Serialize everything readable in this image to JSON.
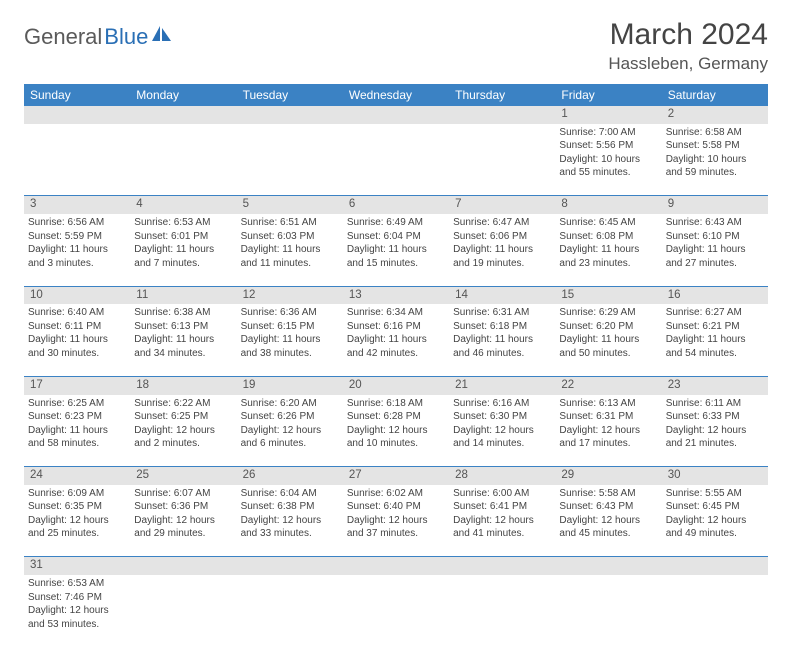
{
  "logo": {
    "part1": "General",
    "part2": "Blue"
  },
  "title": "March 2024",
  "location": "Hassleben, Germany",
  "colors": {
    "header_bg": "#3b82c4",
    "header_text": "#ffffff",
    "daynum_bg": "#e4e4e4",
    "text": "#444444",
    "row_divider": "#3b82c4",
    "logo_gray": "#5a5a5a",
    "logo_blue": "#2a6fb5"
  },
  "day_headers": [
    "Sunday",
    "Monday",
    "Tuesday",
    "Wednesday",
    "Thursday",
    "Friday",
    "Saturday"
  ],
  "weeks": [
    [
      null,
      null,
      null,
      null,
      null,
      {
        "d": "1",
        "sr": "7:00 AM",
        "ss": "5:56 PM",
        "dl": "10 hours and 55 minutes."
      },
      {
        "d": "2",
        "sr": "6:58 AM",
        "ss": "5:58 PM",
        "dl": "10 hours and 59 minutes."
      }
    ],
    [
      {
        "d": "3",
        "sr": "6:56 AM",
        "ss": "5:59 PM",
        "dl": "11 hours and 3 minutes."
      },
      {
        "d": "4",
        "sr": "6:53 AM",
        "ss": "6:01 PM",
        "dl": "11 hours and 7 minutes."
      },
      {
        "d": "5",
        "sr": "6:51 AM",
        "ss": "6:03 PM",
        "dl": "11 hours and 11 minutes."
      },
      {
        "d": "6",
        "sr": "6:49 AM",
        "ss": "6:04 PM",
        "dl": "11 hours and 15 minutes."
      },
      {
        "d": "7",
        "sr": "6:47 AM",
        "ss": "6:06 PM",
        "dl": "11 hours and 19 minutes."
      },
      {
        "d": "8",
        "sr": "6:45 AM",
        "ss": "6:08 PM",
        "dl": "11 hours and 23 minutes."
      },
      {
        "d": "9",
        "sr": "6:43 AM",
        "ss": "6:10 PM",
        "dl": "11 hours and 27 minutes."
      }
    ],
    [
      {
        "d": "10",
        "sr": "6:40 AM",
        "ss": "6:11 PM",
        "dl": "11 hours and 30 minutes."
      },
      {
        "d": "11",
        "sr": "6:38 AM",
        "ss": "6:13 PM",
        "dl": "11 hours and 34 minutes."
      },
      {
        "d": "12",
        "sr": "6:36 AM",
        "ss": "6:15 PM",
        "dl": "11 hours and 38 minutes."
      },
      {
        "d": "13",
        "sr": "6:34 AM",
        "ss": "6:16 PM",
        "dl": "11 hours and 42 minutes."
      },
      {
        "d": "14",
        "sr": "6:31 AM",
        "ss": "6:18 PM",
        "dl": "11 hours and 46 minutes."
      },
      {
        "d": "15",
        "sr": "6:29 AM",
        "ss": "6:20 PM",
        "dl": "11 hours and 50 minutes."
      },
      {
        "d": "16",
        "sr": "6:27 AM",
        "ss": "6:21 PM",
        "dl": "11 hours and 54 minutes."
      }
    ],
    [
      {
        "d": "17",
        "sr": "6:25 AM",
        "ss": "6:23 PM",
        "dl": "11 hours and 58 minutes."
      },
      {
        "d": "18",
        "sr": "6:22 AM",
        "ss": "6:25 PM",
        "dl": "12 hours and 2 minutes."
      },
      {
        "d": "19",
        "sr": "6:20 AM",
        "ss": "6:26 PM",
        "dl": "12 hours and 6 minutes."
      },
      {
        "d": "20",
        "sr": "6:18 AM",
        "ss": "6:28 PM",
        "dl": "12 hours and 10 minutes."
      },
      {
        "d": "21",
        "sr": "6:16 AM",
        "ss": "6:30 PM",
        "dl": "12 hours and 14 minutes."
      },
      {
        "d": "22",
        "sr": "6:13 AM",
        "ss": "6:31 PM",
        "dl": "12 hours and 17 minutes."
      },
      {
        "d": "23",
        "sr": "6:11 AM",
        "ss": "6:33 PM",
        "dl": "12 hours and 21 minutes."
      }
    ],
    [
      {
        "d": "24",
        "sr": "6:09 AM",
        "ss": "6:35 PM",
        "dl": "12 hours and 25 minutes."
      },
      {
        "d": "25",
        "sr": "6:07 AM",
        "ss": "6:36 PM",
        "dl": "12 hours and 29 minutes."
      },
      {
        "d": "26",
        "sr": "6:04 AM",
        "ss": "6:38 PM",
        "dl": "12 hours and 33 minutes."
      },
      {
        "d": "27",
        "sr": "6:02 AM",
        "ss": "6:40 PM",
        "dl": "12 hours and 37 minutes."
      },
      {
        "d": "28",
        "sr": "6:00 AM",
        "ss": "6:41 PM",
        "dl": "12 hours and 41 minutes."
      },
      {
        "d": "29",
        "sr": "5:58 AM",
        "ss": "6:43 PM",
        "dl": "12 hours and 45 minutes."
      },
      {
        "d": "30",
        "sr": "5:55 AM",
        "ss": "6:45 PM",
        "dl": "12 hours and 49 minutes."
      }
    ],
    [
      {
        "d": "31",
        "sr": "6:53 AM",
        "ss": "7:46 PM",
        "dl": "12 hours and 53 minutes."
      },
      null,
      null,
      null,
      null,
      null,
      null
    ]
  ],
  "labels": {
    "sunrise": "Sunrise:",
    "sunset": "Sunset:",
    "daylight": "Daylight:"
  }
}
